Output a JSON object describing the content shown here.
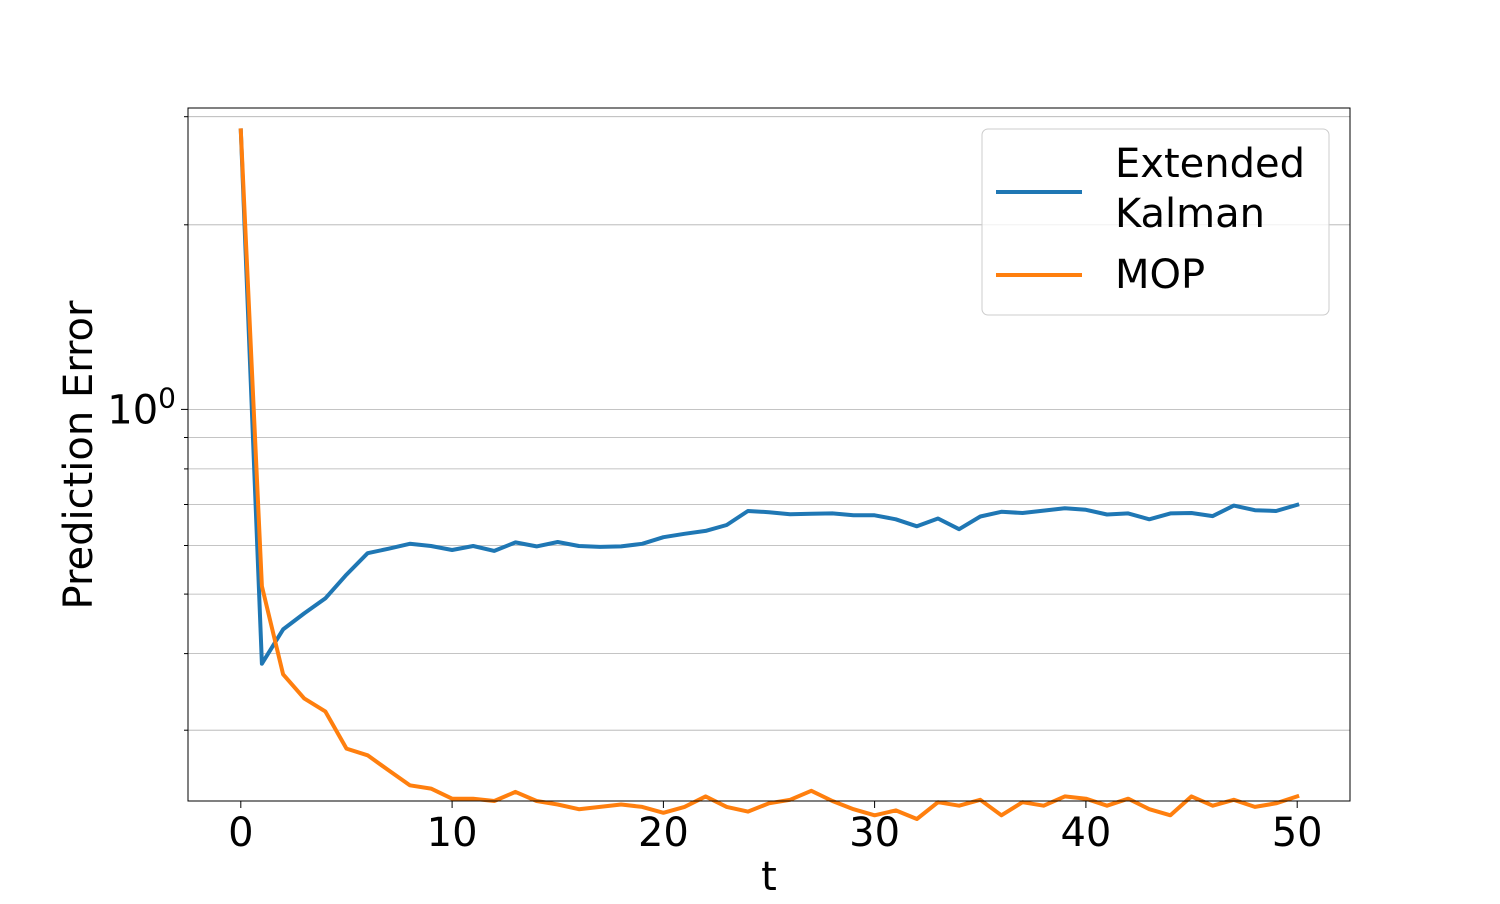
{
  "chart_data": {
    "type": "line",
    "title": "",
    "xlabel": "t",
    "ylabel": "Prediction Error",
    "x_scale": "linear",
    "y_scale": "log",
    "xlim": [
      -2.5,
      52.5
    ],
    "ylim": [
      0.23,
      3.1
    ],
    "x_ticks": [
      0,
      10,
      20,
      30,
      40,
      50
    ],
    "x_tick_labels": [
      "0",
      "10",
      "20",
      "30",
      "40",
      "50"
    ],
    "y_major_ticks": [
      1.0
    ],
    "y_major_tick_label": {
      "base": "10",
      "exponent": "0"
    },
    "y_minor_ticks": [
      0.3,
      0.4,
      0.5,
      0.6,
      0.7,
      0.8,
      0.9,
      2,
      3
    ],
    "grid": "horizontal (major and minor)",
    "legend_position": "top-right",
    "x": [
      0,
      1,
      2,
      3,
      4,
      5,
      6,
      7,
      8,
      9,
      10,
      11,
      12,
      13,
      14,
      15,
      16,
      17,
      18,
      19,
      20,
      21,
      22,
      23,
      24,
      25,
      26,
      27,
      28,
      29,
      30,
      31,
      32,
      33,
      34,
      35,
      36,
      37,
      38,
      39,
      40,
      41,
      42,
      43,
      44,
      45,
      46,
      47,
      48,
      49,
      50
    ],
    "series": [
      {
        "name": "Extended\nKalman",
        "color": "#1f77b4",
        "values": [
          2.85,
          0.385,
          0.438,
          0.465,
          0.492,
          0.538,
          0.583,
          0.593,
          0.604,
          0.599,
          0.59,
          0.599,
          0.588,
          0.607,
          0.598,
          0.608,
          0.599,
          0.597,
          0.598,
          0.604,
          0.619,
          0.627,
          0.634,
          0.648,
          0.683,
          0.68,
          0.675,
          0.676,
          0.677,
          0.672,
          0.672,
          0.662,
          0.645,
          0.664,
          0.638,
          0.669,
          0.681,
          0.678,
          0.684,
          0.69,
          0.686,
          0.674,
          0.677,
          0.662,
          0.677,
          0.678,
          0.67,
          0.697,
          0.685,
          0.683,
          0.699
        ]
      },
      {
        "name": "MOP",
        "color": "#ff7f0e",
        "values": [
          2.85,
          0.515,
          0.37,
          0.338,
          0.322,
          0.28,
          0.273,
          0.258,
          0.244,
          0.241,
          0.232,
          0.232,
          0.23,
          0.238,
          0.23,
          0.227,
          0.223,
          0.225,
          0.227,
          0.225,
          0.22,
          0.225,
          0.234,
          0.225,
          0.221,
          0.228,
          0.231,
          0.239,
          0.23,
          0.223,
          0.218,
          0.222,
          0.215,
          0.229,
          0.226,
          0.231,
          0.218,
          0.229,
          0.226,
          0.234,
          0.232,
          0.226,
          0.232,
          0.223,
          0.218,
          0.234,
          0.226,
          0.231,
          0.225,
          0.228,
          0.234
        ]
      }
    ]
  }
}
